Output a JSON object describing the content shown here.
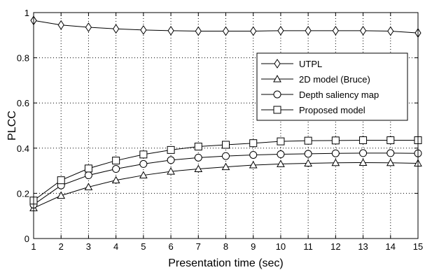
{
  "chart_data": {
    "type": "line",
    "xlabel": "Presentation time (sec)",
    "ylabel": "PLCC",
    "xlim": [
      1,
      15
    ],
    "ylim": [
      0,
      1
    ],
    "x_ticks": [
      1,
      2,
      3,
      4,
      5,
      6,
      7,
      8,
      9,
      10,
      11,
      12,
      13,
      14,
      15
    ],
    "y_ticks": [
      0,
      0.2,
      0.4,
      0.6,
      0.8,
      1
    ],
    "y_tick_labels": [
      "0",
      "0.2",
      "0.4",
      "0.6",
      "0.8",
      "1"
    ],
    "grid": true,
    "legend_position": "top-right",
    "x": [
      1,
      2,
      3,
      4,
      5,
      6,
      7,
      8,
      9,
      10,
      11,
      12,
      13,
      14,
      15
    ],
    "series": [
      {
        "name": "UTPL",
        "marker": "diamond",
        "values": [
          0.965,
          0.945,
          0.935,
          0.928,
          0.923,
          0.92,
          0.918,
          0.918,
          0.918,
          0.92,
          0.92,
          0.92,
          0.92,
          0.918,
          0.91
        ]
      },
      {
        "name": "2D model (Bruce)",
        "marker": "triangle",
        "values": [
          0.135,
          0.19,
          0.228,
          0.258,
          0.28,
          0.297,
          0.308,
          0.317,
          0.325,
          0.33,
          0.333,
          0.335,
          0.336,
          0.335,
          0.333
        ]
      },
      {
        "name": "Depth saliency map",
        "marker": "circle",
        "values": [
          0.15,
          0.235,
          0.28,
          0.308,
          0.33,
          0.347,
          0.358,
          0.365,
          0.37,
          0.373,
          0.375,
          0.377,
          0.378,
          0.378,
          0.377
        ]
      },
      {
        "name": "Proposed model",
        "marker": "square",
        "values": [
          0.168,
          0.258,
          0.31,
          0.345,
          0.372,
          0.392,
          0.407,
          0.415,
          0.422,
          0.43,
          0.433,
          0.434,
          0.435,
          0.435,
          0.435
        ]
      }
    ]
  }
}
